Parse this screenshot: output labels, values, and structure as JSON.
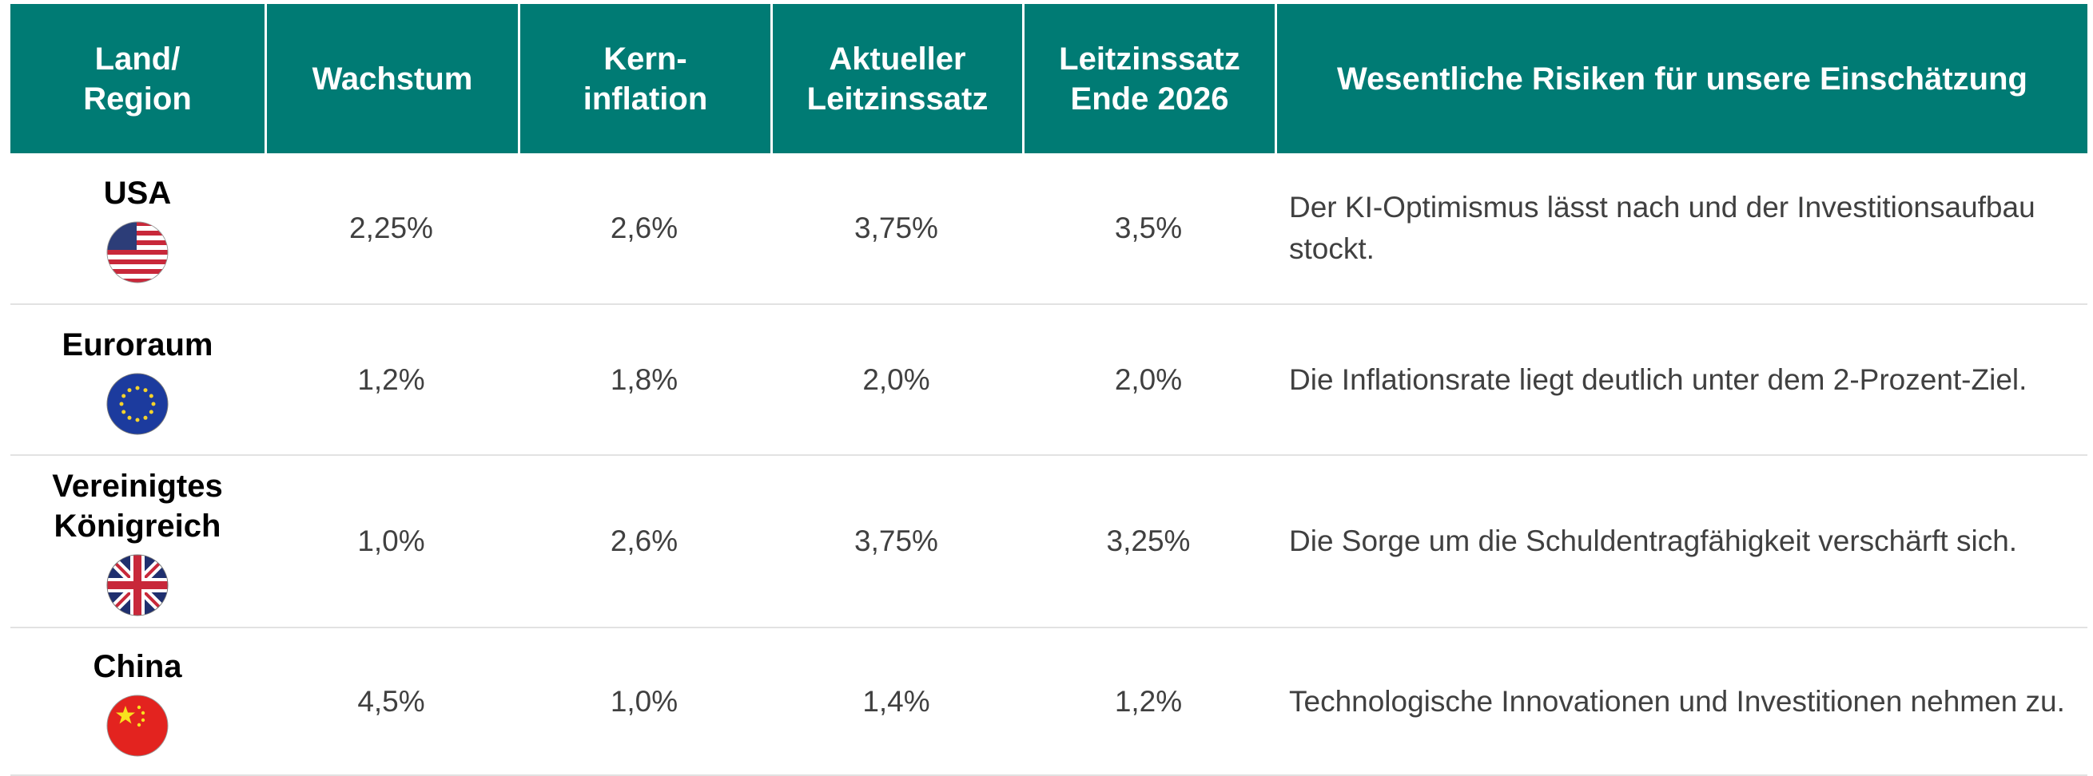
{
  "table": {
    "headers": [
      [
        "Land/",
        "Region"
      ],
      [
        "Wachstum"
      ],
      [
        "Kern-",
        "inflation"
      ],
      [
        "Aktueller",
        "Leitzinssatz"
      ],
      [
        "Leitzinssatz",
        "Ende 2026"
      ],
      [
        "Wesentliche Risiken für unsere Einschätzung"
      ]
    ],
    "rows": [
      [
        "USA",
        "2,25%",
        "2,6%",
        "3,75%",
        "3,5%",
        "Der KI-Optimismus lässt nach und der Investitionsaufbau stockt."
      ],
      [
        "Euroraum",
        "1,2%",
        "1,8%",
        "2,0%",
        "2,0%",
        "Die Inflationsrate liegt deutlich unter dem 2-Prozent-Ziel."
      ],
      [
        "Vereinigtes Königreich",
        "1,0%",
        "2,6%",
        "3,75%",
        "3,25%",
        "Die Sorge um die Schuldentragfähigkeit verschärft sich."
      ],
      [
        "China",
        "4,5%",
        "1,0%",
        "1,4%",
        "1,2%",
        "Technologische Innovationen und Investitionen nehmen zu."
      ]
    ]
  }
}
